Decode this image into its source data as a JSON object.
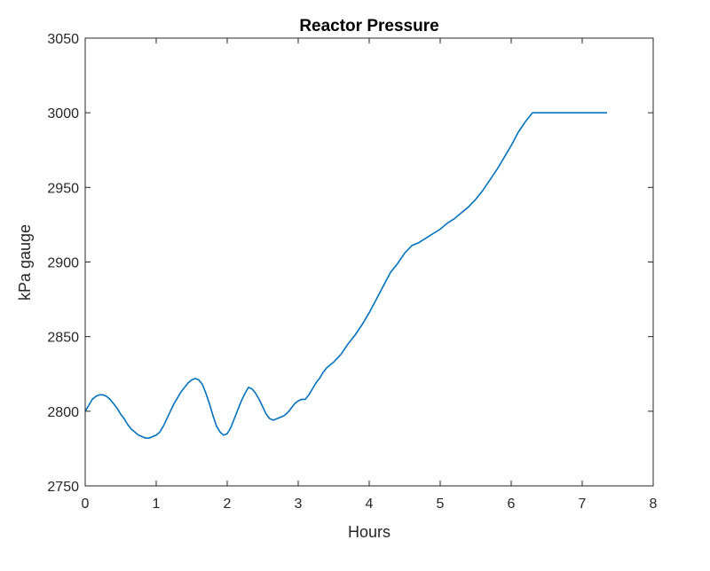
{
  "chart_data": {
    "type": "line",
    "title": "Reactor Pressure",
    "xlabel": "Hours",
    "ylabel": "kPa gauge",
    "xlim": [
      0,
      8
    ],
    "ylim": [
      2750,
      3050
    ],
    "xticks": [
      0,
      1,
      2,
      3,
      4,
      5,
      6,
      7,
      8
    ],
    "yticks": [
      2750,
      2800,
      2850,
      2900,
      2950,
      3000,
      3050
    ],
    "grid": false,
    "legend": "none",
    "series": [
      {
        "color": "#0072BD",
        "x": [
          0.0,
          0.05,
          0.1,
          0.15,
          0.2,
          0.25,
          0.3,
          0.35,
          0.4,
          0.45,
          0.5,
          0.55,
          0.6,
          0.65,
          0.7,
          0.75,
          0.8,
          0.85,
          0.9,
          0.95,
          1.0,
          1.05,
          1.1,
          1.15,
          1.2,
          1.25,
          1.3,
          1.35,
          1.4,
          1.45,
          1.5,
          1.55,
          1.6,
          1.65,
          1.7,
          1.75,
          1.8,
          1.85,
          1.9,
          1.95,
          2.0,
          2.05,
          2.1,
          2.15,
          2.2,
          2.25,
          2.3,
          2.35,
          2.4,
          2.45,
          2.5,
          2.55,
          2.6,
          2.65,
          2.7,
          2.75,
          2.8,
          2.85,
          2.9,
          2.95,
          3.0,
          3.05,
          3.1,
          3.15,
          3.2,
          3.25,
          3.3,
          3.35,
          3.4,
          3.5,
          3.6,
          3.7,
          3.8,
          3.9,
          4.0,
          4.1,
          4.2,
          4.3,
          4.4,
          4.5,
          4.6,
          4.7,
          4.8,
          4.9,
          5.0,
          5.1,
          5.2,
          5.3,
          5.4,
          5.5,
          5.6,
          5.7,
          5.8,
          5.9,
          6.0,
          6.1,
          6.2,
          6.3,
          6.4,
          6.5,
          6.6,
          6.7,
          6.8,
          6.9,
          7.0,
          7.1,
          7.2,
          7.3,
          7.35
        ],
        "y": [
          2800,
          2804,
          2808,
          2810,
          2811,
          2811,
          2810,
          2808,
          2805,
          2802,
          2798,
          2795,
          2791,
          2788,
          2786,
          2784,
          2783,
          2782,
          2782,
          2783,
          2784,
          2786,
          2790,
          2795,
          2800,
          2805,
          2809,
          2813,
          2816,
          2819,
          2821,
          2822,
          2821,
          2818,
          2812,
          2805,
          2797,
          2790,
          2786,
          2784,
          2785,
          2789,
          2795,
          2801,
          2807,
          2812,
          2816,
          2815,
          2812,
          2808,
          2803,
          2798,
          2795,
          2794,
          2795,
          2796,
          2797,
          2799,
          2802,
          2805,
          2807,
          2808,
          2808,
          2811,
          2815,
          2819,
          2822,
          2826,
          2829,
          2833,
          2838,
          2845,
          2851,
          2858,
          2866,
          2875,
          2884,
          2893,
          2899,
          2906,
          2911,
          2913,
          2916,
          2919,
          2922,
          2926,
          2929,
          2933,
          2937,
          2942,
          2948,
          2955,
          2962,
          2970,
          2978,
          2987,
          2994,
          3000,
          3000,
          3000,
          3000,
          3000,
          3000,
          3000,
          3000,
          3000,
          3000,
          3000,
          3000
        ]
      }
    ]
  }
}
